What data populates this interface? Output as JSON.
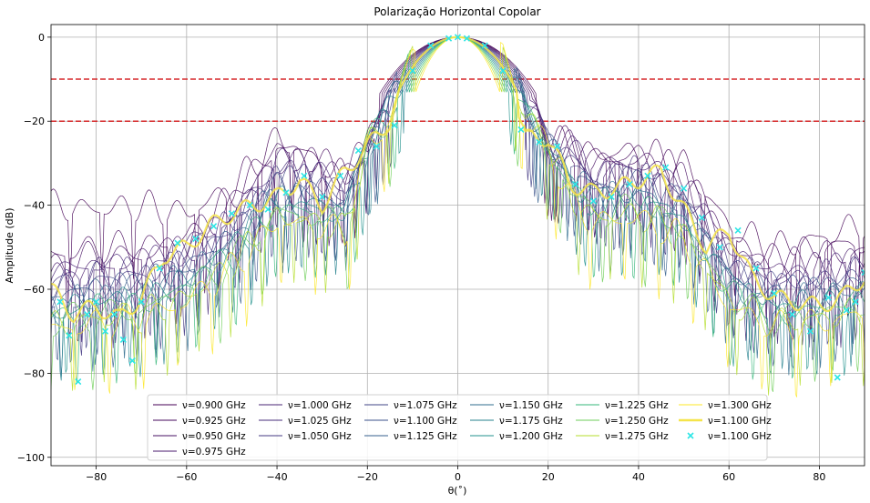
{
  "chart_data": {
    "type": "line",
    "title": "Polarização Horizontal Copolar",
    "xlabel": "θ(˚)",
    "ylabel": "Amplitude (dB)",
    "xlim": [
      -90,
      90
    ],
    "ylim": [
      -102,
      3
    ],
    "xticks": [
      -80,
      -60,
      -40,
      -20,
      0,
      20,
      40,
      60,
      80
    ],
    "yticks": [
      0,
      -20,
      -40,
      -60,
      -80,
      -100
    ],
    "xtick_labels": [
      "−80",
      "−60",
      "−40",
      "−20",
      "0",
      "20",
      "40",
      "60",
      "80"
    ],
    "ytick_labels": [
      "0",
      "−20",
      "−40",
      "−60",
      "−80",
      "−100"
    ],
    "grid": true,
    "legend_position": "lower-center",
    "legend_columns": 6,
    "reference_lines": [
      {
        "y": -10,
        "style": "dashed",
        "color": "#d62728"
      },
      {
        "y": -20,
        "style": "dashed",
        "color": "#d62728"
      }
    ],
    "series": [
      {
        "name": "ν=0.900 GHz",
        "color": "#440154",
        "style": "line",
        "beamwidth": 17.5,
        "x": [
          -90,
          -80,
          -70,
          -60,
          -50,
          -40,
          -30,
          -25,
          -20,
          -15,
          -10,
          -5,
          0,
          5,
          10,
          15,
          20,
          25,
          30,
          40,
          50,
          60,
          70,
          80,
          90
        ],
        "y": [
          -40,
          -41,
          -40,
          -42,
          -36,
          -24,
          -30,
          -33,
          -26,
          -12,
          -3,
          -0.5,
          0,
          -0.5,
          -3,
          -12,
          -24,
          -26,
          -28,
          -27,
          -30,
          -45,
          -50,
          -48,
          -44
        ]
      },
      {
        "name": "ν=0.925 GHz",
        "color": "#46085c",
        "style": "line",
        "beamwidth": 17.0,
        "x": [
          -90,
          -80,
          -70,
          -60,
          -50,
          -40,
          -30,
          -25,
          -20,
          -15,
          -10,
          -5,
          0,
          5,
          10,
          15,
          20,
          25,
          30,
          40,
          50,
          60,
          70,
          80,
          90
        ],
        "y": [
          -52,
          -50,
          -50,
          -48,
          -38,
          -26,
          -30,
          -32,
          -26,
          -12,
          -3,
          -0.5,
          0,
          -0.5,
          -3,
          -12,
          -25,
          -25,
          -29,
          -28,
          -32,
          -48,
          -53,
          -50,
          -49
        ]
      },
      {
        "name": "ν=0.950 GHz",
        "color": "#471063",
        "style": "line",
        "beamwidth": 16.5,
        "x": [
          -90,
          -80,
          -70,
          -60,
          -50,
          -40,
          -30,
          -25,
          -20,
          -15,
          -10,
          -5,
          0,
          5,
          10,
          15,
          20,
          25,
          30,
          40,
          50,
          60,
          70,
          80,
          90
        ],
        "y": [
          -55,
          -52,
          -52,
          -49,
          -40,
          -27,
          -31,
          -34,
          -26,
          -13,
          -3,
          -0.5,
          0,
          -0.5,
          -3,
          -13,
          -26,
          -26,
          -30,
          -29,
          -34,
          -50,
          -55,
          -52,
          -51
        ]
      },
      {
        "name": "ν=0.975 GHz",
        "color": "#481a6c",
        "style": "line",
        "beamwidth": 16.0,
        "x": [
          -90,
          -80,
          -70,
          -60,
          -50,
          -40,
          -30,
          -25,
          -20,
          -15,
          -10,
          -5,
          0,
          5,
          10,
          15,
          20,
          25,
          30,
          40,
          50,
          60,
          70,
          80,
          90
        ],
        "y": [
          -58,
          -55,
          -53,
          -51,
          -42,
          -29,
          -32,
          -34,
          -26,
          -13,
          -3,
          -0.5,
          0,
          -0.5,
          -3,
          -13,
          -26,
          -27,
          -31,
          -30,
          -35,
          -51,
          -56,
          -55,
          -53
        ]
      },
      {
        "name": "ν=1.000 GHz",
        "color": "#482475",
        "style": "line",
        "beamwidth": 15.5,
        "x": [
          -90,
          -80,
          -70,
          -60,
          -50,
          -40,
          -30,
          -25,
          -20,
          -15,
          -10,
          -5,
          0,
          5,
          10,
          15,
          20,
          25,
          30,
          40,
          50,
          60,
          70,
          80,
          90
        ],
        "y": [
          -56,
          -54,
          -55,
          -50,
          -43,
          -30,
          -33,
          -35,
          -26,
          -14,
          -3,
          -0.5,
          0,
          -0.5,
          -3,
          -14,
          -26,
          -27,
          -32,
          -31,
          -36,
          -52,
          -57,
          -56,
          -54
        ]
      },
      {
        "name": "ν=1.025 GHz",
        "color": "#472d7b",
        "style": "line",
        "beamwidth": 15.0,
        "x": [
          -90,
          -80,
          -70,
          -60,
          -50,
          -40,
          -30,
          -25,
          -20,
          -15,
          -10,
          -5,
          0,
          5,
          10,
          15,
          20,
          25,
          30,
          40,
          50,
          60,
          70,
          80,
          90
        ],
        "y": [
          -58,
          -56,
          -56,
          -52,
          -44,
          -31,
          -34,
          -36,
          -26,
          -14,
          -3,
          -0.5,
          0,
          -0.5,
          -3,
          -14,
          -26,
          -28,
          -33,
          -32,
          -37,
          -53,
          -58,
          -57,
          -55
        ]
      },
      {
        "name": "ν=1.050 GHz",
        "color": "#443983",
        "style": "line",
        "beamwidth": 14.5,
        "x": [
          -90,
          -80,
          -70,
          -60,
          -50,
          -40,
          -30,
          -25,
          -20,
          -15,
          -10,
          -5,
          0,
          5,
          10,
          15,
          20,
          25,
          30,
          40,
          50,
          60,
          70,
          80,
          90
        ],
        "y": [
          -60,
          -57,
          -57,
          -53,
          -45,
          -33,
          -35,
          -37,
          -26,
          -15,
          -3,
          -0.5,
          0,
          -0.5,
          -3,
          -15,
          -26,
          -29,
          -34,
          -33,
          -38,
          -54,
          -59,
          -58,
          -56
        ]
      },
      {
        "name": "ν=1.075 GHz",
        "color": "#414487",
        "style": "line",
        "beamwidth": 14.0,
        "x": [
          -90,
          -80,
          -70,
          -60,
          -50,
          -40,
          -30,
          -25,
          -20,
          -15,
          -10,
          -5,
          0,
          5,
          10,
          15,
          20,
          25,
          30,
          40,
          50,
          60,
          70,
          80,
          90
        ],
        "y": [
          -61,
          -58,
          -58,
          -54,
          -46,
          -34,
          -36,
          -38,
          -26,
          -15,
          -3,
          -0.5,
          0,
          -0.5,
          -3,
          -15,
          -26,
          -30,
          -35,
          -34,
          -39,
          -55,
          -60,
          -59,
          -57
        ]
      },
      {
        "name": "ν=1.100 GHz",
        "color": "#3b528b",
        "style": "line",
        "beamwidth": 13.5,
        "x": [
          -90,
          -80,
          -70,
          -60,
          -50,
          -40,
          -30,
          -25,
          -20,
          -15,
          -10,
          -5,
          0,
          5,
          10,
          15,
          20,
          25,
          30,
          40,
          50,
          60,
          70,
          80,
          90
        ],
        "y": [
          -62,
          -60,
          -59,
          -55,
          -47,
          -36,
          -37,
          -39,
          -26,
          -16,
          -3,
          -0.5,
          0,
          -0.5,
          -3,
          -16,
          -26,
          -31,
          -36,
          -35,
          -40,
          -56,
          -61,
          -60,
          -58
        ]
      },
      {
        "name": "ν=1.125 GHz",
        "color": "#355f8d",
        "style": "line",
        "beamwidth": 13.0,
        "x": [
          -90,
          -80,
          -70,
          -60,
          -50,
          -40,
          -30,
          -25,
          -20,
          -15,
          -10,
          -5,
          0,
          5,
          10,
          15,
          20,
          25,
          30,
          40,
          50,
          60,
          70,
          80,
          90
        ],
        "y": [
          -63,
          -61,
          -60,
          -56,
          -48,
          -37,
          -38,
          -40,
          -26,
          -16,
          -3,
          -0.5,
          0,
          -0.5,
          -3,
          -16,
          -26,
          -32,
          -37,
          -36,
          -41,
          -57,
          -62,
          -61,
          -59
        ]
      },
      {
        "name": "ν=1.150 GHz",
        "color": "#2f6c8e",
        "style": "line",
        "beamwidth": 12.5,
        "x": [
          -90,
          -80,
          -70,
          -60,
          -50,
          -40,
          -30,
          -25,
          -20,
          -15,
          -10,
          -5,
          0,
          5,
          10,
          15,
          20,
          25,
          30,
          40,
          50,
          60,
          70,
          80,
          90
        ],
        "y": [
          -64,
          -62,
          -61,
          -57,
          -49,
          -38,
          -39,
          -41,
          -26,
          -17,
          -3,
          -0.5,
          0,
          -0.5,
          -3,
          -17,
          -26,
          -33,
          -38,
          -37,
          -42,
          -58,
          -63,
          -62,
          -60
        ]
      },
      {
        "name": "ν=1.175 GHz",
        "color": "#26828e",
        "style": "line",
        "beamwidth": 12.0,
        "x": [
          -90,
          -80,
          -70,
          -60,
          -50,
          -40,
          -30,
          -25,
          -20,
          -15,
          -10,
          -5,
          0,
          5,
          10,
          15,
          20,
          25,
          30,
          40,
          50,
          60,
          70,
          80,
          90
        ],
        "y": [
          -65,
          -63,
          -62,
          -58,
          -50,
          -39,
          -40,
          -42,
          -26,
          -17,
          -3,
          -0.5,
          0,
          -0.5,
          -3,
          -17,
          -26,
          -34,
          -39,
          -38,
          -43,
          -59,
          -64,
          -63,
          -61
        ]
      },
      {
        "name": "ν=1.200 GHz",
        "color": "#21918c",
        "style": "line",
        "beamwidth": 11.5,
        "x": [
          -90,
          -80,
          -70,
          -60,
          -50,
          -40,
          -30,
          -25,
          -20,
          -15,
          -10,
          -5,
          0,
          5,
          10,
          15,
          20,
          25,
          30,
          40,
          50,
          60,
          70,
          80,
          90
        ],
        "y": [
          -66,
          -64,
          -63,
          -59,
          -51,
          -40,
          -41,
          -43,
          -26,
          -18,
          -3,
          -0.5,
          0,
          -0.5,
          -3,
          -18,
          -26,
          -35,
          -40,
          -39,
          -44,
          -60,
          -65,
          -64,
          -62
        ]
      },
      {
        "name": "ν=1.225 GHz",
        "color": "#35b779",
        "style": "line",
        "beamwidth": 11.0,
        "x": [
          -90,
          -80,
          -70,
          -60,
          -50,
          -40,
          -30,
          -25,
          -20,
          -15,
          -10,
          -5,
          0,
          5,
          10,
          15,
          20,
          25,
          30,
          40,
          50,
          60,
          70,
          80,
          90
        ],
        "y": [
          -67,
          -65,
          -64,
          -60,
          -52,
          -41,
          -42,
          -44,
          -26,
          -18,
          -3,
          -0.5,
          0,
          -0.5,
          -3,
          -18,
          -26,
          -36,
          -41,
          -40,
          -45,
          -61,
          -66,
          -65,
          -63
        ]
      },
      {
        "name": "ν=1.250 GHz",
        "color": "#6ece58",
        "style": "line",
        "beamwidth": 10.5,
        "x": [
          -90,
          -80,
          -70,
          -60,
          -50,
          -40,
          -30,
          -25,
          -20,
          -15,
          -10,
          -5,
          0,
          5,
          10,
          15,
          20,
          25,
          30,
          40,
          50,
          60,
          70,
          80,
          90
        ],
        "y": [
          -68,
          -66,
          -65,
          -61,
          -53,
          -42,
          -43,
          -45,
          -26,
          -19,
          -3,
          -0.5,
          0,
          -0.5,
          -3,
          -19,
          -26,
          -37,
          -42,
          -41,
          -46,
          -62,
          -67,
          -66,
          -64
        ]
      },
      {
        "name": "ν=1.275 GHz",
        "color": "#b5de2b",
        "style": "line",
        "beamwidth": 10.0,
        "x": [
          -90,
          -80,
          -70,
          -60,
          -50,
          -40,
          -30,
          -25,
          -20,
          -15,
          -10,
          -5,
          0,
          5,
          10,
          15,
          20,
          25,
          30,
          40,
          50,
          60,
          70,
          80,
          90
        ],
        "y": [
          -69,
          -67,
          -66,
          -62,
          -54,
          -43,
          -44,
          -46,
          -26,
          -19,
          -3,
          -0.5,
          0,
          -0.5,
          -3,
          -19,
          -26,
          -38,
          -43,
          -42,
          -47,
          -63,
          -68,
          -67,
          -65
        ]
      },
      {
        "name": "ν=1.300 GHz",
        "color": "#fde725",
        "style": "line",
        "beamwidth": 9.5,
        "x": [
          -90,
          -80,
          -70,
          -60,
          -50,
          -40,
          -30,
          -25,
          -20,
          -15,
          -10,
          -5,
          0,
          5,
          10,
          15,
          20,
          25,
          30,
          40,
          50,
          60,
          70,
          80,
          90
        ],
        "y": [
          -70,
          -68,
          -67,
          -63,
          -55,
          -44,
          -45,
          -47,
          -26,
          -20,
          -3,
          -0.5,
          0,
          -0.5,
          -3,
          -20,
          -26,
          -39,
          -44,
          -43,
          -48,
          -64,
          -69,
          -68,
          -66
        ]
      },
      {
        "name": "ν=1.100 GHz",
        "color": "#f5e44a",
        "style": "thick-line",
        "beamwidth": 13.5,
        "x": [
          -90,
          -85,
          -80,
          -75,
          -70,
          -65,
          -60,
          -55,
          -50,
          -45,
          -40,
          -35,
          -30,
          -25,
          -20,
          -15,
          -10,
          -5,
          0,
          5,
          10,
          15,
          20,
          25,
          30,
          35,
          40,
          45,
          50,
          55,
          60,
          65,
          70,
          75,
          80,
          85,
          90
        ],
        "y": [
          -60,
          -66,
          -64,
          -67,
          -62,
          -52,
          -50,
          -45,
          -42,
          -40,
          -38,
          -34,
          -40,
          -32,
          -26,
          -20,
          -5,
          -0.8,
          0,
          -0.8,
          -5,
          -24,
          -24,
          -35,
          -37,
          -36,
          -34,
          -32,
          -41,
          -50,
          -46,
          -57,
          -62,
          -63,
          -64,
          -62,
          -57
        ]
      },
      {
        "name": "ν=1.100 GHz",
        "color": "#2ee6e6",
        "style": "markers",
        "marker": "x",
        "beamwidth": 13.5,
        "x": [
          -88,
          -86,
          -84,
          -82,
          -80,
          -78,
          -76,
          -74,
          -72,
          -70,
          -66,
          -62,
          -58,
          -54,
          -50,
          -46,
          -42,
          -38,
          -34,
          -30,
          -26,
          -22,
          -18,
          -14,
          -10,
          -6,
          -2,
          0,
          2,
          6,
          10,
          14,
          18,
          22,
          26,
          30,
          34,
          38,
          42,
          46,
          50,
          54,
          58,
          62,
          66,
          70,
          74,
          78,
          82,
          84,
          86,
          88,
          90
        ],
        "y": [
          -63,
          -71,
          -82,
          -66,
          -63,
          -70,
          -66,
          -72,
          -77,
          -63,
          -55,
          -49,
          -48,
          -45,
          -42,
          -40,
          -41,
          -37,
          -33,
          -38,
          -33,
          -27,
          -26,
          -21,
          -8,
          -2,
          -0.3,
          0,
          -0.3,
          -2,
          -8,
          -22,
          -25,
          -26,
          -35,
          -39,
          -38,
          -35,
          -33,
          -31,
          -36,
          -43,
          -50,
          -46,
          -55,
          -61,
          -66,
          -70,
          -62,
          -81,
          -65,
          -63,
          -56
        ]
      }
    ]
  }
}
